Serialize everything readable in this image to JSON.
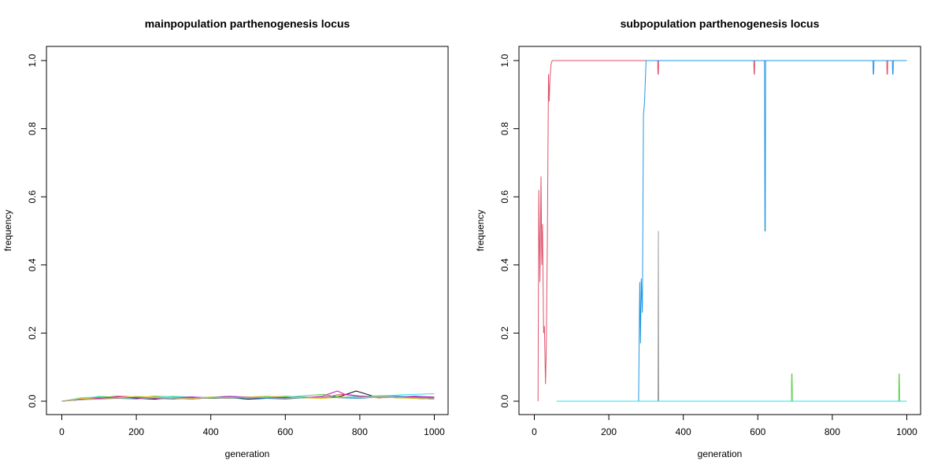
{
  "chart_data": [
    {
      "type": "line",
      "title": "mainpopulation parthenogenesis locus",
      "xlabel": "generation",
      "ylabel": "frequency",
      "xlim": [
        0,
        1000
      ],
      "ylim": [
        0,
        1
      ],
      "xticks": [
        "0",
        "200",
        "400",
        "600",
        "800",
        "1000"
      ],
      "yticks": [
        "0.0",
        "0.2",
        "0.4",
        "0.6",
        "0.8",
        "1.0"
      ],
      "legend": "none",
      "grid": false,
      "series": [
        {
          "color": "#000000",
          "x": [
            0,
            50,
            100,
            150,
            200,
            250,
            300,
            350,
            400,
            450,
            500,
            550,
            600,
            650,
            700,
            750,
            790,
            820,
            850,
            900,
            950,
            1000
          ],
          "y": [
            0,
            0.005,
            0.012,
            0.01,
            0.008,
            0.006,
            0.01,
            0.012,
            0.008,
            0.01,
            0.006,
            0.008,
            0.01,
            0.012,
            0.01,
            0.015,
            0.03,
            0.02,
            0.01,
            0.012,
            0.008,
            0.006
          ]
        },
        {
          "color": "#DF536B",
          "x": [
            0,
            50,
            100,
            150,
            200,
            250,
            300,
            350,
            400,
            450,
            500,
            550,
            600,
            650,
            700,
            750,
            800,
            850,
            900,
            950,
            1000
          ],
          "y": [
            0,
            0.008,
            0.01,
            0.015,
            0.012,
            0.01,
            0.008,
            0.006,
            0.01,
            0.012,
            0.008,
            0.01,
            0.014,
            0.01,
            0.012,
            0.02,
            0.015,
            0.01,
            0.012,
            0.015,
            0.01
          ]
        },
        {
          "color": "#61D04F",
          "x": [
            0,
            50,
            100,
            150,
            200,
            250,
            300,
            350,
            400,
            450,
            500,
            550,
            600,
            650,
            700,
            750,
            800,
            850,
            900,
            950,
            1000
          ],
          "y": [
            0,
            0.006,
            0.014,
            0.012,
            0.01,
            0.015,
            0.012,
            0.01,
            0.008,
            0.012,
            0.01,
            0.014,
            0.012,
            0.016,
            0.02,
            0.012,
            0.01,
            0.015,
            0.012,
            0.01,
            0.008
          ]
        },
        {
          "color": "#2297E6",
          "x": [
            0,
            50,
            100,
            150,
            200,
            250,
            300,
            350,
            400,
            450,
            500,
            550,
            600,
            650,
            700,
            750,
            800,
            850,
            900,
            950,
            1000
          ],
          "y": [
            0,
            0.004,
            0.008,
            0.01,
            0.012,
            0.008,
            0.006,
            0.01,
            0.012,
            0.014,
            0.01,
            0.008,
            0.006,
            0.01,
            0.012,
            0.01,
            0.008,
            0.012,
            0.015,
            0.012,
            0.01
          ]
        },
        {
          "color": "#28E2E5",
          "x": [
            0,
            50,
            100,
            150,
            200,
            250,
            300,
            350,
            400,
            450,
            500,
            550,
            600,
            650,
            700,
            750,
            800,
            850,
            900,
            950,
            1000
          ],
          "y": [
            0,
            0.01,
            0.012,
            0.008,
            0.01,
            0.012,
            0.014,
            0.012,
            0.01,
            0.008,
            0.01,
            0.012,
            0.015,
            0.012,
            0.01,
            0.012,
            0.014,
            0.016,
            0.018,
            0.02,
            0.022
          ]
        },
        {
          "color": "#CD0BBC",
          "x": [
            0,
            50,
            100,
            150,
            200,
            250,
            300,
            350,
            400,
            450,
            500,
            550,
            600,
            650,
            700,
            740,
            760,
            800,
            850,
            900,
            950,
            1000
          ],
          "y": [
            0,
            0.006,
            0.008,
            0.012,
            0.01,
            0.008,
            0.01,
            0.012,
            0.01,
            0.014,
            0.012,
            0.01,
            0.012,
            0.01,
            0.015,
            0.03,
            0.02,
            0.015,
            0.012,
            0.01,
            0.014,
            0.012
          ]
        },
        {
          "color": "#F5C710",
          "x": [
            0,
            50,
            100,
            150,
            200,
            250,
            300,
            350,
            400,
            450,
            500,
            550,
            600,
            650,
            700,
            750,
            800,
            850,
            900,
            950,
            1000
          ],
          "y": [
            0,
            0.008,
            0.006,
            0.01,
            0.014,
            0.012,
            0.01,
            0.008,
            0.012,
            0.01,
            0.012,
            0.015,
            0.012,
            0.01,
            0.008,
            0.012,
            0.01,
            0.012,
            0.01,
            0.008,
            0.006
          ]
        },
        {
          "color": "#9E9E9E",
          "x": [
            0,
            50,
            100,
            150,
            200,
            250,
            300,
            350,
            400,
            450,
            500,
            550,
            600,
            650,
            700,
            750,
            800,
            850,
            900,
            950,
            1000
          ],
          "y": [
            0,
            0.004,
            0.006,
            0.008,
            0.006,
            0.01,
            0.008,
            0.006,
            0.01,
            0.008,
            0.012,
            0.01,
            0.008,
            0.01,
            0.012,
            0.01,
            0.012,
            0.014,
            0.012,
            0.01,
            0.008
          ]
        }
      ]
    },
    {
      "type": "line",
      "title": "subpopulation parthenogenesis locus",
      "xlabel": "generation",
      "ylabel": "frequency",
      "xlim": [
        0,
        1000
      ],
      "ylim": [
        0,
        1
      ],
      "xticks": [
        "0",
        "200",
        "400",
        "600",
        "800",
        "1000"
      ],
      "yticks": [
        "0.0",
        "0.2",
        "0.4",
        "0.6",
        "0.8",
        "1.0"
      ],
      "legend": "none",
      "grid": false,
      "series": [
        {
          "color": "#DF536B",
          "x": [
            10,
            12,
            15,
            18,
            20,
            22,
            25,
            27,
            30,
            32,
            35,
            38,
            40,
            42,
            45,
            48,
            50,
            55,
            330,
            331,
            332,
            333,
            334,
            335,
            588,
            589,
            590,
            591,
            592,
            593,
            945,
            946,
            947,
            948,
            949,
            950,
            1000
          ],
          "y": [
            0,
            0.62,
            0.35,
            0.66,
            0.4,
            0.52,
            0.2,
            0.22,
            0.05,
            0.14,
            0.48,
            0.96,
            0.88,
            0.95,
            0.99,
            1.0,
            1.0,
            1.0,
            1.0,
            1.0,
            0.96,
            0.96,
            1.0,
            1.0,
            1.0,
            1.0,
            0.96,
            0.96,
            1.0,
            1.0,
            1.0,
            1.0,
            0.96,
            0.96,
            1.0,
            1.0,
            1.0
          ]
        },
        {
          "color": "#2297E6",
          "x": [
            60,
            280,
            283,
            285,
            287,
            290,
            293,
            296,
            300,
            302,
            305,
            615,
            618,
            619,
            620,
            621,
            622,
            908,
            909,
            910,
            911,
            912,
            960,
            961,
            962,
            963,
            964,
            1000
          ],
          "y": [
            0,
            0,
            0.35,
            0.17,
            0.36,
            0.26,
            0.84,
            0.88,
            1.0,
            1.0,
            1.0,
            1.0,
            1.0,
            0.5,
            0.5,
            1.0,
            1.0,
            1.0,
            1.0,
            0.96,
            0.96,
            1.0,
            1.0,
            1.0,
            0.96,
            0.96,
            1.0,
            1.0
          ]
        },
        {
          "color": "#9E9E9E",
          "x": [
            330,
            332,
            333,
            334,
            336
          ],
          "y": [
            0,
            0,
            0.5,
            0,
            0
          ]
        },
        {
          "color": "#61D04F",
          "x": [
            60,
            690,
            691,
            692,
            693,
            694,
            978,
            979,
            980,
            981,
            982,
            1000
          ],
          "y": [
            0,
            0,
            0.08,
            0.08,
            0,
            0,
            0,
            0.08,
            0.08,
            0,
            0,
            0
          ]
        },
        {
          "color": "#28E2E5",
          "x": [
            60,
            1000
          ],
          "y": [
            0,
            0
          ]
        }
      ]
    }
  ]
}
